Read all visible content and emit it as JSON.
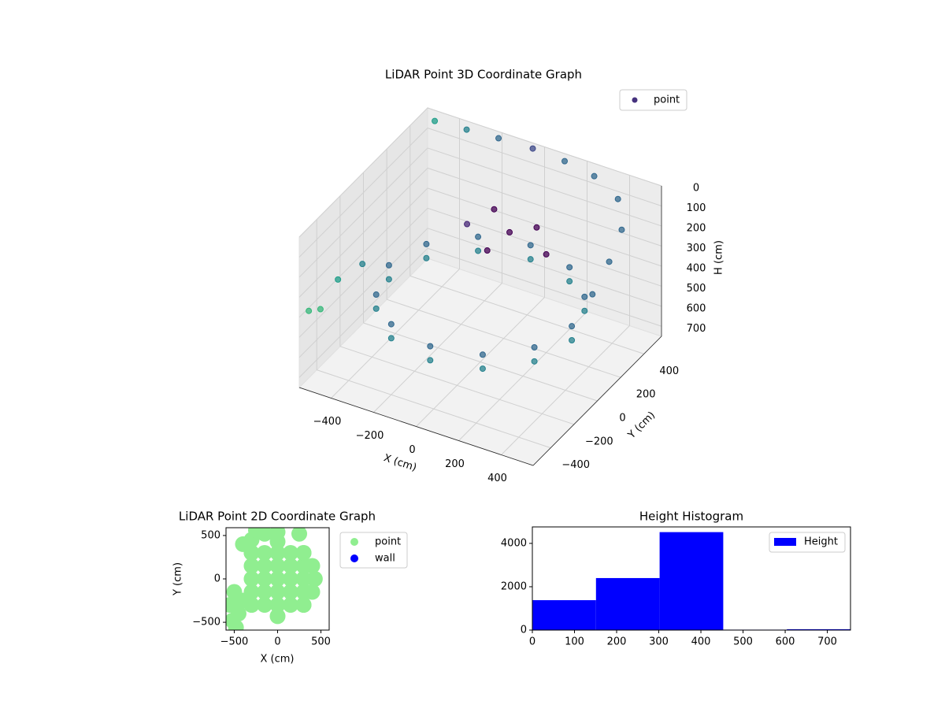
{
  "chart_data": [
    {
      "type": "scatter3d",
      "title": "LiDAR Point 3D Coordinate Graph",
      "xlabel": "X (cm)",
      "ylabel": "Y (cm)",
      "zlabel": "H (cm)",
      "xlim": [
        -550,
        550
      ],
      "ylim": [
        -550,
        550
      ],
      "zlim": [
        750,
        0
      ],
      "xticks": [
        {
          "value": -400,
          "label": "−400"
        },
        {
          "value": -200,
          "label": "−200"
        },
        0,
        200,
        400
      ],
      "yticks": [
        {
          "value": -400,
          "label": "−400"
        },
        {
          "value": -200,
          "label": "−200"
        },
        0,
        200,
        400
      ],
      "zticks": [
        0,
        100,
        200,
        300,
        400,
        500,
        600,
        700
      ],
      "colormap": "viridis",
      "legend": "upper right",
      "grid": true,
      "series": [
        {
          "name": "point",
          "color": "#46327e",
          "x": [
            430,
            372,
            215,
            0,
            -215,
            -372,
            -430,
            -372,
            -215,
            0,
            215,
            372,
            430,
            372,
            215,
            0,
            -215,
            -372,
            -430,
            -372,
            -215,
            0,
            215,
            372,
            -100,
            0,
            100,
            -50,
            200,
            -200,
            -500,
            -350,
            -200,
            -50,
            100,
            250,
            400,
            500,
            540,
            560,
            -560,
            -560,
            -560,
            -500
          ],
          "y": [
            0,
            215,
            372,
            430,
            372,
            215,
            0,
            -215,
            -372,
            -430,
            -372,
            -215,
            0,
            215,
            372,
            430,
            372,
            215,
            0,
            -215,
            -372,
            -430,
            -372,
            -215,
            300,
            250,
            300,
            150,
            200,
            250,
            520,
            520,
            520,
            540,
            540,
            520,
            450,
            300,
            120,
            -60,
            -200,
            -350,
            -450,
            -100
          ],
          "z": [
            420,
            420,
            420,
            420,
            420,
            420,
            420,
            420,
            420,
            420,
            420,
            420,
            490,
            490,
            490,
            490,
            490,
            490,
            490,
            490,
            490,
            490,
            490,
            490,
            200,
            250,
            220,
            300,
            260,
            280,
            30,
            20,
            10,
            20,
            30,
            40,
            60,
            90,
            130,
            180,
            420,
            480,
            430,
            380
          ]
        }
      ]
    },
    {
      "type": "scatter",
      "title": "LiDAR Point 2D Coordinate Graph",
      "xlabel": "X (cm)",
      "ylabel": "Y (cm)",
      "xlim": [
        -595,
        595
      ],
      "ylim": [
        -590,
        590
      ],
      "xticks": [
        {
          "value": -500,
          "label": "−500"
        },
        0,
        500
      ],
      "yticks": [
        {
          "value": -500,
          "label": "−500"
        },
        0,
        500
      ],
      "legend": "outside right",
      "series": [
        {
          "name": "point",
          "color": "#90ee90",
          "x": [
            -300,
            -150,
            0,
            150,
            300,
            -300,
            -150,
            0,
            150,
            300,
            -300,
            -150,
            0,
            150,
            300,
            -300,
            -150,
            0,
            150,
            300,
            -300,
            -150,
            0,
            150,
            300,
            430,
            300,
            0,
            -300,
            -300,
            0,
            300,
            400,
            400,
            -500,
            -550,
            -450,
            -520,
            -480,
            -400,
            -150,
            -300,
            -400,
            -250,
            0,
            250
          ],
          "y": [
            -300,
            -300,
            -300,
            -300,
            -300,
            -150,
            -150,
            -150,
            -150,
            -150,
            0,
            0,
            0,
            0,
            0,
            150,
            150,
            150,
            150,
            150,
            300,
            300,
            300,
            300,
            300,
            0,
            300,
            430,
            300,
            -300,
            -430,
            -300,
            -150,
            150,
            -150,
            -300,
            -400,
            -480,
            -560,
            -250,
            520,
            450,
            400,
            560,
            540,
            520
          ]
        },
        {
          "name": "wall",
          "color": "#0000ff",
          "x": [],
          "y": []
        }
      ]
    },
    {
      "type": "histogram",
      "title": "Height Histogram",
      "bins": [
        0,
        151,
        302,
        453,
        604,
        755
      ],
      "counts": [
        1380,
        2400,
        4520,
        20,
        40
      ],
      "xlim": [
        0,
        755
      ],
      "ylim": [
        0,
        4760
      ],
      "xticks": [
        0,
        100,
        200,
        300,
        400,
        500,
        600,
        700
      ],
      "yticks": [
        0,
        2000,
        4000
      ],
      "legend": "upper right",
      "series_name": "Height",
      "color": "#0000ff"
    }
  ]
}
